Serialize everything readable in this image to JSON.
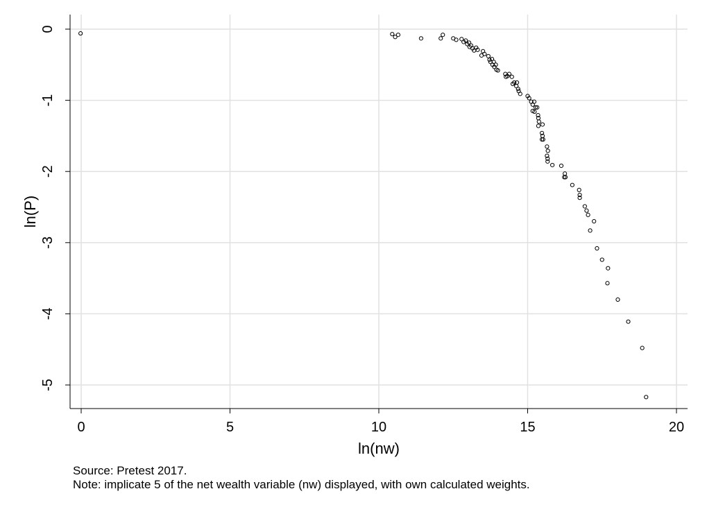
{
  "chart_data": {
    "type": "scatter",
    "xlabel": "ln(nw)",
    "ylabel": "ln(P)",
    "xlim": [
      -0.3,
      20.4
    ],
    "ylim": [
      -5.35,
      0.05
    ],
    "xticks": [
      0,
      5,
      10,
      15,
      20
    ],
    "yticks": [
      0,
      -1,
      -2,
      -3,
      -4,
      -5
    ],
    "grid": true,
    "marker": "hollow-circle",
    "points": [
      [
        -0.02,
        -0.06
      ],
      [
        10.45,
        -0.07
      ],
      [
        10.55,
        -0.11
      ],
      [
        10.65,
        -0.08
      ],
      [
        11.42,
        -0.13
      ],
      [
        12.08,
        -0.13
      ],
      [
        12.15,
        -0.08
      ],
      [
        12.5,
        -0.13
      ],
      [
        12.6,
        -0.15
      ],
      [
        12.78,
        -0.14
      ],
      [
        12.85,
        -0.18
      ],
      [
        12.92,
        -0.16
      ],
      [
        12.97,
        -0.21
      ],
      [
        13.03,
        -0.19
      ],
      [
        13.05,
        -0.25
      ],
      [
        13.1,
        -0.23
      ],
      [
        13.15,
        -0.27
      ],
      [
        13.2,
        -0.3
      ],
      [
        13.27,
        -0.26
      ],
      [
        13.32,
        -0.29
      ],
      [
        13.45,
        -0.37
      ],
      [
        13.5,
        -0.31
      ],
      [
        13.55,
        -0.35
      ],
      [
        13.68,
        -0.38
      ],
      [
        13.72,
        -0.43
      ],
      [
        13.75,
        -0.46
      ],
      [
        13.8,
        -0.42
      ],
      [
        13.82,
        -0.5
      ],
      [
        13.86,
        -0.46
      ],
      [
        13.88,
        -0.53
      ],
      [
        13.93,
        -0.5
      ],
      [
        13.95,
        -0.57
      ],
      [
        14.0,
        -0.58
      ],
      [
        14.25,
        -0.63
      ],
      [
        14.27,
        -0.67
      ],
      [
        14.32,
        -0.66
      ],
      [
        14.38,
        -0.63
      ],
      [
        14.47,
        -0.67
      ],
      [
        14.5,
        -0.77
      ],
      [
        14.55,
        -0.75
      ],
      [
        14.62,
        -0.8
      ],
      [
        14.64,
        -0.75
      ],
      [
        14.68,
        -0.84
      ],
      [
        14.7,
        -0.87
      ],
      [
        14.75,
        -0.91
      ],
      [
        15.0,
        -0.94
      ],
      [
        15.05,
        -0.97
      ],
      [
        15.12,
        -1.02
      ],
      [
        15.17,
        -1.06
      ],
      [
        15.22,
        -1.02
      ],
      [
        15.27,
        -1.1
      ],
      [
        15.32,
        -1.1
      ],
      [
        15.17,
        -1.15
      ],
      [
        15.23,
        -1.16
      ],
      [
        15.35,
        -1.21
      ],
      [
        15.36,
        -1.25
      ],
      [
        15.38,
        -1.3
      ],
      [
        15.36,
        -1.36
      ],
      [
        15.5,
        -1.34
      ],
      [
        15.48,
        -1.46
      ],
      [
        15.5,
        -1.5
      ],
      [
        15.48,
        -1.55
      ],
      [
        15.52,
        -1.55
      ],
      [
        15.65,
        -1.65
      ],
      [
        15.68,
        -1.71
      ],
      [
        15.65,
        -1.78
      ],
      [
        15.67,
        -1.82
      ],
      [
        15.67,
        -1.86
      ],
      [
        15.83,
        -1.91
      ],
      [
        16.13,
        -1.92
      ],
      [
        16.25,
        -2.03
      ],
      [
        16.23,
        -2.08
      ],
      [
        16.27,
        -2.08
      ],
      [
        16.5,
        -2.19
      ],
      [
        16.73,
        -2.26
      ],
      [
        16.75,
        -2.33
      ],
      [
        16.75,
        -2.37
      ],
      [
        16.92,
        -2.49
      ],
      [
        16.98,
        -2.55
      ],
      [
        17.03,
        -2.61
      ],
      [
        17.1,
        -2.83
      ],
      [
        17.23,
        -2.7
      ],
      [
        17.33,
        -3.08
      ],
      [
        17.5,
        -3.24
      ],
      [
        17.7,
        -3.36
      ],
      [
        17.68,
        -3.57
      ],
      [
        18.03,
        -3.8
      ],
      [
        18.38,
        -4.11
      ],
      [
        18.85,
        -4.48
      ],
      [
        18.98,
        -5.17
      ]
    ]
  },
  "notes": {
    "source": "Source: Pretest 2017.",
    "note": "Note: implicate 5 of the net wealth variable (nw) displayed, with own calculated weights."
  }
}
